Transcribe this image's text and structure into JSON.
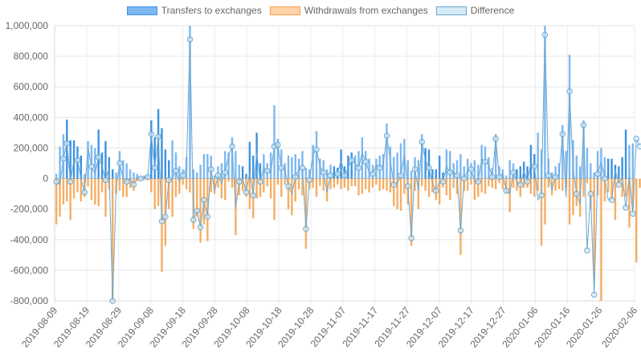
{
  "chart_data": {
    "type": "bar",
    "ylim": [
      -800000,
      1000000
    ],
    "y_ticks": [
      -800000,
      -600000,
      -400000,
      -200000,
      0,
      200000,
      400000,
      600000,
      800000,
      1000000
    ],
    "y_tick_labels": [
      "-800,000",
      "-600,000",
      "-400,000",
      "-200,000",
      "0",
      "200,000",
      "400,000",
      "600,000",
      "800,000",
      "1,000,000"
    ],
    "x_start": "2019-08-09",
    "x_end": "2020-02-06",
    "x_tick_labels": [
      "2019-08-09",
      "2019-08-19",
      "2019-08-29",
      "2019-09-08",
      "2019-09-18",
      "2019-09-28",
      "2019-10-08",
      "2019-10-18",
      "2019-10-28",
      "2019-11-07",
      "2019-11-17",
      "2019-11-27",
      "2019-12-07",
      "2019-12-17",
      "2019-12-27",
      "2020-01-06",
      "2020-01-16",
      "2020-01-26",
      "2020-02-06"
    ],
    "grid": true,
    "legend_position": "top",
    "series": [
      {
        "name": "Transfers to exchanges",
        "kind": "bar",
        "color": "#3d93e3",
        "fill": "#7db8f0",
        "values": [
          30000,
          210000,
          290000,
          385000,
          250000,
          250000,
          210000,
          150000,
          30000,
          245000,
          220000,
          200000,
          320000,
          170000,
          245000,
          140000,
          60000,
          40000,
          180000,
          120000,
          100000,
          60000,
          40000,
          30000,
          10000,
          20000,
          20000,
          380000,
          270000,
          455000,
          330000,
          190000,
          120000,
          250000,
          170000,
          80000,
          60000,
          140000,
          1000000,
          60000,
          40000,
          90000,
          160000,
          160000,
          150000,
          20000,
          80000,
          100000,
          180000,
          170000,
          270000,
          180000,
          90000,
          80000,
          30000,
          240000,
          150000,
          300000,
          100000,
          160000,
          100000,
          170000,
          480000,
          260000,
          190000,
          100000,
          150000,
          140000,
          160000,
          130000,
          180000,
          70000,
          60000,
          220000,
          310000,
          130000,
          120000,
          60000,
          90000,
          80000,
          70000,
          190000,
          80000,
          150000,
          170000,
          150000,
          180000,
          270000,
          180000,
          130000,
          90000,
          130000,
          150000,
          160000,
          360000,
          210000,
          140000,
          170000,
          230000,
          260000,
          120000,
          50000,
          140000,
          120000,
          290000,
          200000,
          190000,
          60000,
          60000,
          150000,
          40000,
          190000,
          180000,
          100000,
          120000,
          160000,
          80000,
          130000,
          100000,
          120000,
          90000,
          220000,
          210000,
          140000,
          70000,
          290000,
          80000,
          60000,
          20000,
          120000,
          100000,
          60000,
          80000,
          110000,
          80000,
          220000,
          160000,
          300000,
          190000,
          1000000,
          130000,
          40000,
          80000,
          100000,
          350000,
          180000,
          810000,
          250000,
          150000,
          80000,
          380000,
          200000,
          100000,
          40000,
          180000,
          200000,
          140000,
          130000,
          130000,
          90000,
          80000,
          140000,
          320000,
          220000,
          230000
        ],
        "pale_indices": [
          0,
          1,
          2,
          8,
          9,
          10,
          11,
          17,
          18,
          19,
          20,
          21,
          22,
          23,
          24,
          25,
          26,
          33,
          34,
          35,
          36,
          37,
          38,
          39,
          40,
          41,
          42,
          43,
          44,
          45,
          46,
          47,
          48,
          49,
          50,
          51,
          52,
          59,
          60,
          61,
          62,
          63,
          64,
          65,
          66,
          67,
          68,
          69,
          70,
          71,
          72,
          73,
          74,
          75,
          76,
          77,
          78,
          85,
          86,
          87,
          88,
          89,
          90,
          91,
          92,
          93,
          94,
          95,
          96,
          97,
          98,
          99,
          100,
          101,
          102,
          103,
          104,
          111,
          112,
          113,
          114,
          115,
          116,
          117,
          118,
          119,
          120,
          121,
          122,
          123,
          124,
          125,
          126,
          127,
          128,
          129,
          130,
          137,
          138,
          139,
          140,
          141,
          142,
          143,
          144,
          145,
          146,
          147,
          148,
          149,
          150,
          151,
          152,
          153,
          154,
          155,
          156,
          163,
          164,
          165,
          166,
          167,
          168,
          169,
          170,
          171,
          172,
          173
        ]
      },
      {
        "name": "Withdrawals from exchanges",
        "kind": "bar",
        "color": "#f5a04a",
        "fill": "#fdd3a8",
        "values": [
          -300000,
          -250000,
          -170000,
          -150000,
          -270000,
          -130000,
          -90000,
          -150000,
          -120000,
          -50000,
          -140000,
          -170000,
          -180000,
          -90000,
          -250000,
          -70000,
          -800000,
          -100000,
          -80000,
          -120000,
          -120000,
          -60000,
          -80000,
          -20000,
          -10000,
          -10000,
          -10000,
          -90000,
          -200000,
          -180000,
          -610000,
          -440000,
          -200000,
          -250000,
          -120000,
          -100000,
          -40000,
          -70000,
          -90000,
          -330000,
          -250000,
          -420000,
          -300000,
          -410000,
          -90000,
          -100000,
          -60000,
          -130000,
          -140000,
          -20000,
          -60000,
          -370000,
          -110000,
          -80000,
          -120000,
          -200000,
          -260000,
          -130000,
          -120000,
          -90000,
          -50000,
          -130000,
          -270000,
          -40000,
          -120000,
          -40000,
          -200000,
          -240000,
          -150000,
          -70000,
          -110000,
          -460000,
          -70000,
          -60000,
          -120000,
          -50000,
          -80000,
          -150000,
          -70000,
          -60000,
          -40000,
          -70000,
          -60000,
          -80000,
          -50000,
          -50000,
          -110000,
          -100000,
          -70000,
          -90000,
          -60000,
          -40000,
          -80000,
          -70000,
          -80000,
          -90000,
          -180000,
          -200000,
          -210000,
          -100000,
          -170000,
          -440000,
          -80000,
          -200000,
          -50000,
          -80000,
          -120000,
          -90000,
          -140000,
          -170000,
          -60000,
          -110000,
          -140000,
          -60000,
          -100000,
          -500000,
          -80000,
          -80000,
          -40000,
          -140000,
          -120000,
          -90000,
          -100000,
          -50000,
          -60000,
          -70000,
          -30000,
          -70000,
          -100000,
          -220000,
          -60000,
          -80000,
          -120000,
          -60000,
          -60000,
          -100000,
          -120000,
          -80000,
          -440000,
          -300000,
          -60000,
          -110000,
          -80000,
          -70000,
          -80000,
          -60000,
          -300000,
          -240000,
          -180000,
          -250000,
          -120000,
          -30000,
          -200000,
          -670000,
          -110000,
          -800000,
          -150000,
          -90000,
          -140000,
          -270000,
          -30000,
          -120000,
          -120000,
          -320000,
          -200000,
          -550000,
          -60000,
          -20000
        ]
      },
      {
        "name": "Difference",
        "kind": "line",
        "color": "#6aa7cf",
        "fill": "#d6ebf8",
        "values": [
          -20000,
          -40000,
          130000,
          230000,
          -20000,
          120000,
          120000,
          0,
          -90000,
          200000,
          80000,
          30000,
          140000,
          80000,
          -10000,
          70000,
          -800000,
          -60000,
          100000,
          0,
          -20000,
          0,
          -40000,
          10000,
          0,
          10000,
          10000,
          290000,
          70000,
          275000,
          -280000,
          -250000,
          -10000,
          0,
          50000,
          -20000,
          20000,
          70000,
          910000,
          -270000,
          -210000,
          -320000,
          -140000,
          -250000,
          60000,
          -80000,
          20000,
          -30000,
          40000,
          150000,
          210000,
          -190000,
          -20000,
          0,
          -90000,
          40000,
          -110000,
          170000,
          -20000,
          70000,
          50000,
          40000,
          210000,
          220000,
          70000,
          60000,
          -50000,
          -100000,
          10000,
          60000,
          70000,
          -330000,
          -10000,
          160000,
          190000,
          80000,
          40000,
          -90000,
          20000,
          20000,
          30000,
          120000,
          20000,
          70000,
          120000,
          100000,
          70000,
          170000,
          110000,
          40000,
          30000,
          90000,
          70000,
          90000,
          280000,
          120000,
          -40000,
          -30000,
          20000,
          160000,
          -50000,
          -390000,
          60000,
          -80000,
          240000,
          120000,
          70000,
          -30000,
          -80000,
          -20000,
          -20000,
          80000,
          40000,
          40000,
          20000,
          -340000,
          0,
          50000,
          60000,
          -20000,
          -20000,
          130000,
          110000,
          90000,
          10000,
          260000,
          10000,
          30000,
          -80000,
          -100000,
          40000,
          -20000,
          -40000,
          50000,
          -20000,
          100000,
          80000,
          -140000,
          -110000,
          940000,
          20000,
          -70000,
          10000,
          20000,
          290000,
          -120000,
          570000,
          70000,
          -100000,
          -170000,
          350000,
          -470000,
          -100000,
          -760000,
          30000,
          110000,
          0,
          -140000,
          -140000,
          60000,
          -40000,
          20000,
          -190000,
          20000,
          -230000,
          260000,
          210000
        ]
      }
    ]
  }
}
